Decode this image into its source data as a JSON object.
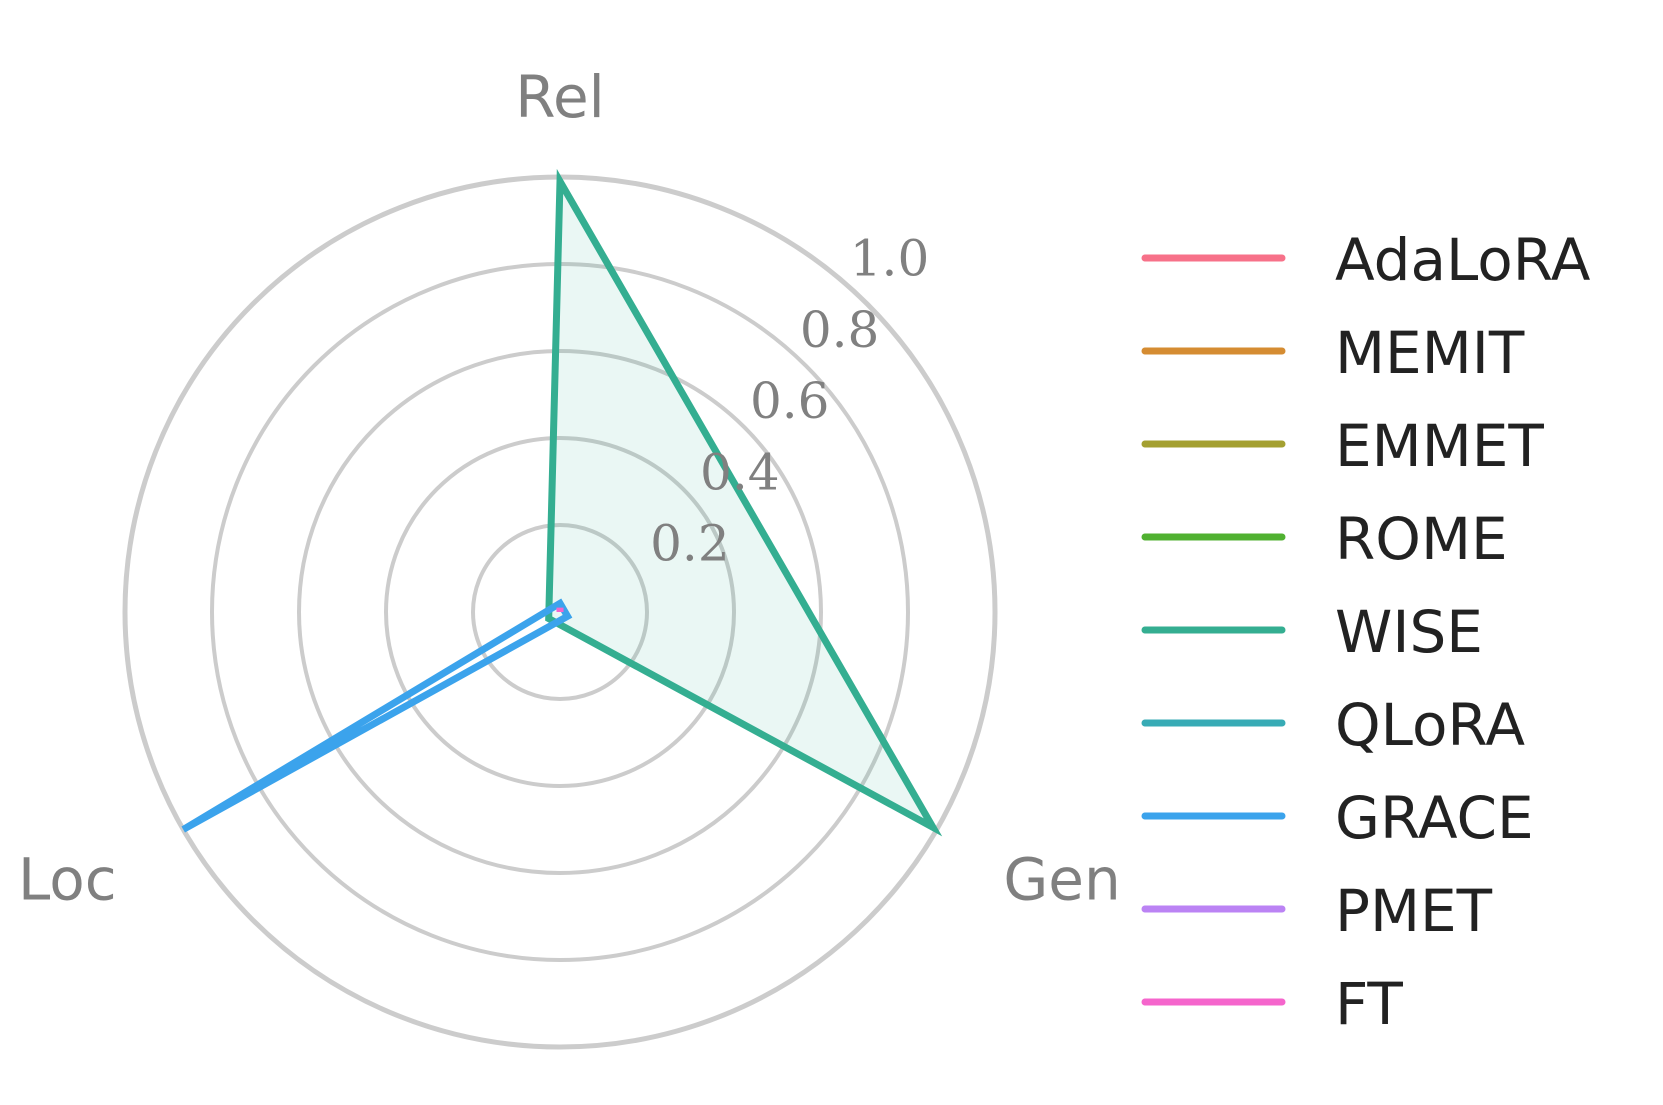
{
  "chart_data": {
    "type": "radar",
    "title": "",
    "axes": [
      "Rel",
      "Gen",
      "Loc"
    ],
    "rlim": [
      0,
      1.0
    ],
    "rticks": [
      0.2,
      0.4,
      0.6,
      0.8,
      1.0
    ],
    "rtick_labels": [
      "0.2",
      "0.4",
      "0.6",
      "0.8",
      "1.0"
    ],
    "grid": true,
    "legend_position": "right",
    "series": [
      {
        "name": "AdaLoRA",
        "color": "#f77189",
        "values": [
          0.0,
          0.0,
          0.0
        ],
        "filled": false
      },
      {
        "name": "MEMIT",
        "color": "#d58c32",
        "values": [
          0.0,
          0.0,
          0.0
        ],
        "filled": false
      },
      {
        "name": "EMMET",
        "color": "#a4a031",
        "values": [
          0.0,
          0.0,
          0.0
        ],
        "filled": false
      },
      {
        "name": "ROME",
        "color": "#50b131",
        "values": [
          0.0,
          0.0,
          0.0
        ],
        "filled": false
      },
      {
        "name": "WISE",
        "color": "#34ae91",
        "values": [
          0.99,
          0.99,
          0.03
        ],
        "filled": true
      },
      {
        "name": "QLoRA",
        "color": "#37abb5",
        "values": [
          0.0,
          0.0,
          0.0
        ],
        "filled": false
      },
      {
        "name": "GRACE",
        "color": "#3ba3ec",
        "values": [
          0.02,
          0.02,
          1.0
        ],
        "filled": false
      },
      {
        "name": "PMET",
        "color": "#bb83f4",
        "values": [
          0.0,
          0.0,
          0.0
        ],
        "filled": false
      },
      {
        "name": "FT",
        "color": "#f565cc",
        "values": [
          0.01,
          0.0,
          0.0
        ],
        "filled": false
      }
    ]
  }
}
